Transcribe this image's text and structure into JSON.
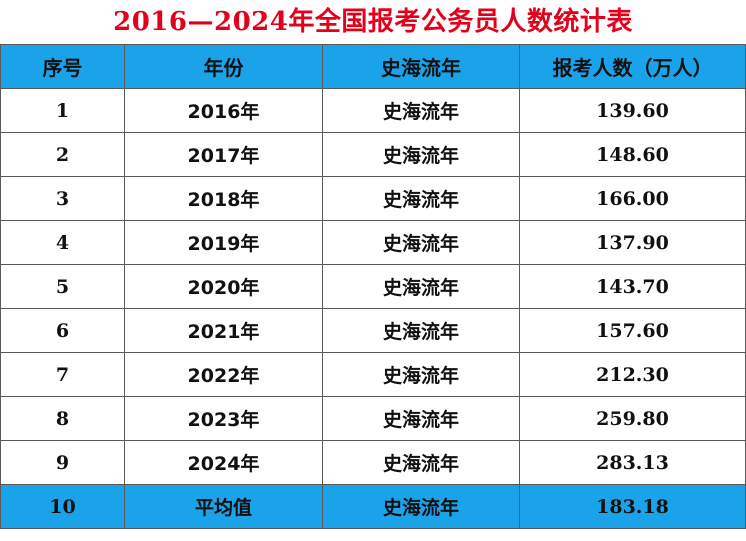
{
  "chart_data": {
    "type": "table",
    "title": "2016—2024年全国报考公务员人数统计表",
    "columns": [
      "序号",
      "年份",
      "史海流年",
      "报考人数（万人）"
    ],
    "rows": [
      [
        "1",
        "2016年",
        "史海流年",
        "139.60"
      ],
      [
        "2",
        "2017年",
        "史海流年",
        "148.60"
      ],
      [
        "3",
        "2018年",
        "史海流年",
        "166.00"
      ],
      [
        "4",
        "2019年",
        "史海流年",
        "137.90"
      ],
      [
        "5",
        "2020年",
        "史海流年",
        "143.70"
      ],
      [
        "6",
        "2021年",
        "史海流年",
        "157.60"
      ],
      [
        "7",
        "2022年",
        "史海流年",
        "212.30"
      ],
      [
        "8",
        "2023年",
        "史海流年",
        "259.80"
      ],
      [
        "9",
        "2024年",
        "史海流年",
        "283.13"
      ],
      [
        "10",
        "平均值",
        "史海流年",
        "183.18"
      ]
    ],
    "colors": {
      "title": "#e3001b",
      "header_bg": "#1aa3e8",
      "average_row_bg": "#1aa3e8"
    }
  }
}
